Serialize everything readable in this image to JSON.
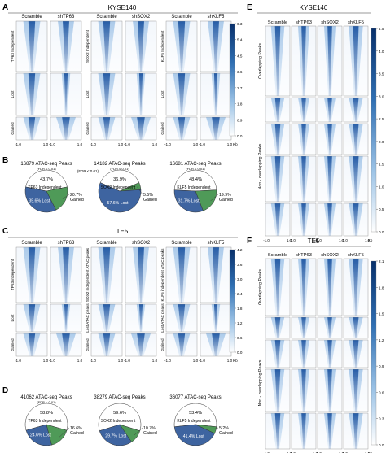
{
  "panels": {
    "A": {
      "letter": "A",
      "cell_line": "KYSE140",
      "groups": [
        {
          "conditions": [
            "Scramble",
            "shTP63"
          ],
          "row_labels": [
            "TP63 Independent",
            "Lost",
            "Gained"
          ]
        },
        {
          "conditions": [
            "Scramble",
            "shSOX2"
          ],
          "row_labels": [
            "SOX2 Independent",
            "Lost",
            "Gained"
          ]
        },
        {
          "conditions": [
            "Scramble",
            "shKLF5"
          ],
          "row_labels": [
            "KLF5 Independent",
            "Lost",
            "Gained"
          ]
        }
      ],
      "x_ticks": [
        "-1.0",
        "1.0",
        "-1.0",
        "1.0",
        "-1.0",
        "1.0",
        "-1.0",
        "1.0",
        "-1.0",
        "1.0",
        "-1.0",
        "1.0"
      ],
      "x_unit": "Kb",
      "colorbar_ticks": [
        "6.3",
        "5.4",
        "4.5",
        "3.6",
        "2.7",
        "1.8",
        "0.9",
        "0.0"
      ]
    },
    "B": {
      "letter": "B",
      "fdr": "(FDR < 0.01)",
      "pies": [
        {
          "title": "16879  ATAC-seq Peaks",
          "slices": [
            {
              "label": "TP63 Independent",
              "pct_text": "43.7%",
              "value": 43.7,
              "color": "#ffffff"
            },
            {
              "label": "Lost",
              "pct_text": "35.6%",
              "value": 35.6,
              "color": "#3e64a0"
            },
            {
              "label": "Gained",
              "pct_text": "20.7%",
              "value": 20.7,
              "color": "#4f9a58"
            }
          ]
        },
        {
          "title": "14182  ATAC-seq Peaks",
          "slices": [
            {
              "label": "SOX2 Independent",
              "pct_text": "36.9%",
              "value": 36.9,
              "color": "#ffffff"
            },
            {
              "label": "Lost",
              "pct_text": "57.6%",
              "value": 57.6,
              "color": "#3e64a0"
            },
            {
              "label": "Gained",
              "pct_text": "5.5%",
              "value": 5.5,
              "color": "#4f9a58"
            }
          ]
        },
        {
          "title": "16681  ATAC-seq Peaks",
          "slices": [
            {
              "label": "KLF5 Independent",
              "pct_text": "48.4%",
              "value": 48.4,
              "color": "#ffffff"
            },
            {
              "label": "Lost",
              "pct_text": "31.7%",
              "value": 31.7,
              "color": "#3e64a0"
            },
            {
              "label": "Gained",
              "pct_text": "19.9%",
              "value": 19.9,
              "color": "#4f9a58"
            }
          ]
        }
      ]
    },
    "C": {
      "letter": "C",
      "cell_line": "TE5",
      "groups": [
        {
          "conditions": [
            "Scramble",
            "shTP63"
          ],
          "row_labels": [
            "TP63 independent",
            "Lost",
            "Gained"
          ]
        },
        {
          "conditions": [
            "Scramble",
            "shSOX2"
          ],
          "row_labels": [
            "SOX2 independent ATAC peaks",
            "Lost ATAC peaks",
            "Gained"
          ]
        },
        {
          "conditions": [
            "Scramble",
            "shKLF5"
          ],
          "row_labels": [
            "KLF5 independent ATAC peaks",
            "Lost ATAC peaks",
            "Gained"
          ]
        }
      ],
      "x_ticks": [
        "-1.0",
        "1.0",
        "-1.0",
        "1.0",
        "-1.0",
        "1.0",
        "-1.0",
        "1.0",
        "-1.0",
        "1.0",
        "-1.0",
        "1.0"
      ],
      "x_unit": "Kb",
      "colorbar_ticks": [
        "4.2",
        "3.6",
        "3.0",
        "2.4",
        "1.8",
        "1.2",
        "0.6",
        "0.0"
      ]
    },
    "D": {
      "letter": "D",
      "fdr": "(FDR < 0.01)",
      "pies": [
        {
          "title": "41062  ATAC-seq Peaks",
          "slices": [
            {
              "label": "TP63 Independent",
              "pct_text": "58.8%",
              "value": 58.8,
              "color": "#ffffff"
            },
            {
              "label": "Lost",
              "pct_text": "24.6%",
              "value": 24.6,
              "color": "#3e64a0"
            },
            {
              "label": "Gained",
              "pct_text": "16.6%",
              "value": 16.6,
              "color": "#4f9a58"
            }
          ]
        },
        {
          "title": "38279  ATAC-seq Peaks",
          "slices": [
            {
              "label": "SOX2 Independent",
              "pct_text": "59.6%",
              "value": 59.6,
              "color": "#ffffff"
            },
            {
              "label": "Lost",
              "pct_text": "29.7%",
              "value": 29.7,
              "color": "#3e64a0"
            },
            {
              "label": "Gained",
              "pct_text": "10.7%",
              "value": 10.7,
              "color": "#4f9a58"
            }
          ]
        },
        {
          "title": "36077  ATAC-seq Peaks",
          "slices": [
            {
              "label": "KLF5 Independent",
              "pct_text": "53.4%",
              "value": 53.4,
              "color": "#ffffff"
            },
            {
              "label": "Lost",
              "pct_text": "41.4%",
              "value": 41.4,
              "color": "#3e64a0"
            },
            {
              "label": "Gained",
              "pct_text": "5.2%",
              "value": 5.2,
              "color": "#4f9a58"
            }
          ]
        }
      ]
    },
    "E": {
      "letter": "E",
      "cell_line": "KYSE140",
      "conditions": [
        "Scramble",
        "shTP63",
        "shSOX2",
        "shKLF5"
      ],
      "row_labels": [
        "Overlapping Peaks",
        "Non - overlapping Peaks"
      ],
      "x_ticks": [
        "-1.0",
        "1.0",
        "-1.0",
        "1.0",
        "-1.0",
        "1.0",
        "-1.0",
        "1.0"
      ],
      "x_unit": "Kb",
      "colorbar_ticks": [
        "4.5",
        "4.0",
        "3.5",
        "3.0",
        "2.5",
        "2.0",
        "1.5",
        "1.0",
        "0.5",
        "0.0"
      ]
    },
    "F": {
      "letter": "F",
      "cell_line": "TE5",
      "conditions": [
        "Scramble",
        "shTP63",
        "shSOX2",
        "shKLF5"
      ],
      "row_labels": [
        "Overlapping Peaks",
        "Non - overlapping Peaks"
      ],
      "x_ticks": [
        "-1.0",
        "1.0",
        "-1.0",
        "1.0",
        "-1.0",
        "1.0",
        "-1.0",
        "1.0"
      ],
      "x_unit": "Kb",
      "colorbar_ticks": [
        "2.1",
        "1.8",
        "1.5",
        "1.2",
        "0.9",
        "0.6",
        "0.3",
        "0.0"
      ]
    }
  },
  "colors": {
    "heat_strong": "#1f4f9a",
    "heat_mid": "#8fb9e0",
    "heat_weak": "#f4f8fd",
    "lost": "#3e64a0",
    "gained": "#4f9a58"
  }
}
